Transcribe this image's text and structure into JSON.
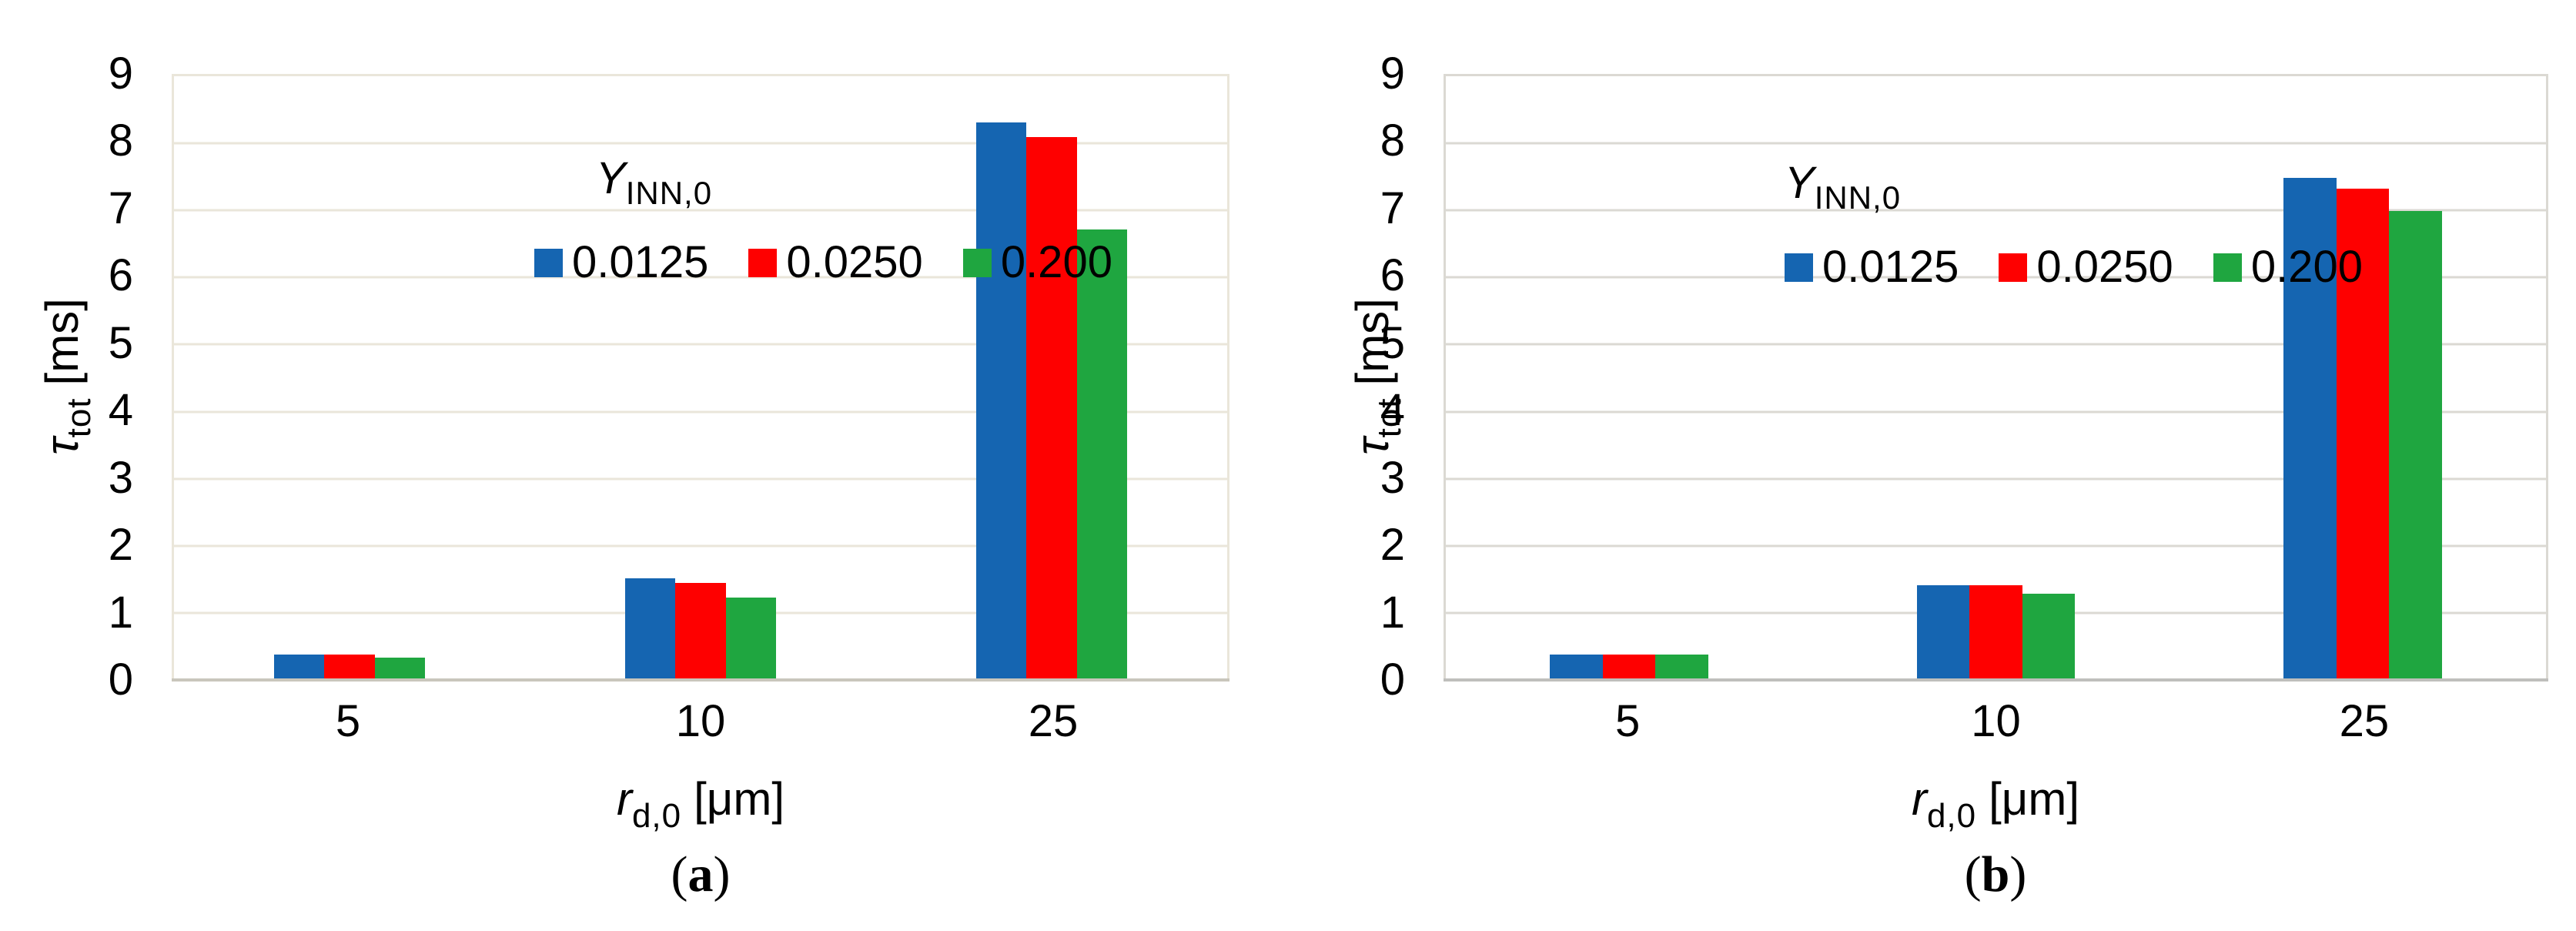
{
  "palette": {
    "blue": "#1565B1",
    "red": "#FE0000",
    "green": "#1FA640"
  },
  "chart_data": [
    {
      "id": "a",
      "type": "bar",
      "caption_open": "(",
      "caption_letter": "a",
      "caption_close": ")",
      "legend": {
        "title": {
          "base": "Y",
          "sub": "INN,0"
        },
        "position": "top-inside",
        "entries": [
          {
            "label": "0.0125",
            "color": "#1565B1"
          },
          {
            "label": "0.0250",
            "color": "#FE0000"
          },
          {
            "label": "0.200",
            "color": "#1FA640"
          }
        ]
      },
      "x_axis": {
        "label": {
          "base": "r",
          "sub": "d,0",
          "unit": "[μm]"
        },
        "label_text": "r_d,0 [μm]",
        "categories": [
          "5",
          "10",
          "25"
        ]
      },
      "y_axis": {
        "label": {
          "base": "τ",
          "sub": "tot",
          "unit": "[ms]"
        },
        "label_text": "τ_tot [ms]",
        "ticks": [
          "9",
          "8",
          "7",
          "6",
          "5",
          "4",
          "3",
          "2",
          "1",
          "0"
        ],
        "ylim": [
          0,
          9
        ],
        "grid": true
      },
      "series": [
        {
          "name": "0.0125",
          "color": "#1565B1",
          "values": [
            0.38,
            1.51,
            8.31
          ]
        },
        {
          "name": "0.0250",
          "color": "#FE0000",
          "values": [
            0.38,
            1.45,
            8.09
          ]
        },
        {
          "name": "0.200",
          "color": "#1FA640",
          "values": [
            0.33,
            1.23,
            6.72
          ]
        }
      ]
    },
    {
      "id": "b",
      "type": "bar",
      "caption_open": "(",
      "caption_letter": "b",
      "caption_close": ")",
      "legend": {
        "title": {
          "base": "Y",
          "sub": "INN,0"
        },
        "position": "top-inside",
        "entries": [
          {
            "label": "0.0125",
            "color": "#1565B1"
          },
          {
            "label": "0.0250",
            "color": "#FE0000"
          },
          {
            "label": "0.200",
            "color": "#1FA640"
          }
        ]
      },
      "x_axis": {
        "label": {
          "base": "r",
          "sub": "d,0",
          "unit": "[μm]"
        },
        "label_text": "r_d,0 [μm]",
        "categories": [
          "5",
          "10",
          "25"
        ]
      },
      "y_axis": {
        "label": {
          "base": "τ",
          "sub": "tot",
          "unit": "[ms]"
        },
        "label_text": "τ_tot [ms]",
        "ticks": [
          "9",
          "8",
          "7",
          "6",
          "5",
          "4",
          "3",
          "2",
          "1",
          "0"
        ],
        "ylim": [
          0,
          9
        ],
        "grid": true
      },
      "series": [
        {
          "name": "0.0125",
          "color": "#1565B1",
          "values": [
            0.38,
            1.41,
            7.48
          ]
        },
        {
          "name": "0.0250",
          "color": "#FE0000",
          "values": [
            0.38,
            1.41,
            7.32
          ]
        },
        {
          "name": "0.200",
          "color": "#1FA640",
          "values": [
            0.38,
            1.29,
            6.99
          ]
        }
      ]
    }
  ]
}
